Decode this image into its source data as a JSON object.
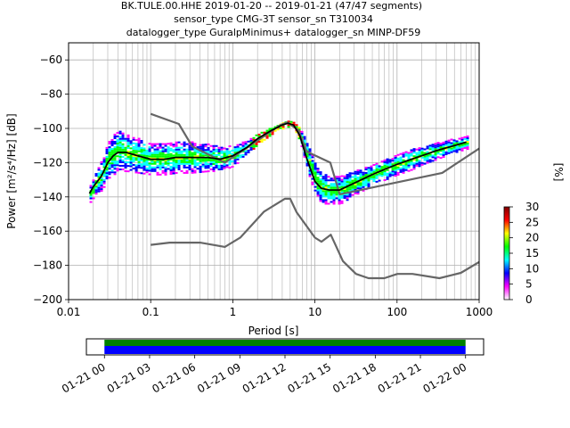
{
  "header": {
    "line1": "BK.TULE.00.HHE   2019-01-20 -- 2019-01-21  (47/47 segments)",
    "line2": "sensor_type CMG-3T sensor_sn T310034",
    "line3": "datalogger_type GuralpMinimus+ datalogger_sn MINP-DF59"
  },
  "chart_data": [
    {
      "type": "heatmap",
      "xlabel": "Period [s]",
      "ylabel": "Power [m²/s⁴/Hz] [dB]",
      "xscale": "log",
      "xlim": [
        0.01,
        1000
      ],
      "ylim": [
        -200,
        -50
      ],
      "grid": true,
      "x_ticks": [
        {
          "v": 0.01,
          "label": "0.01"
        },
        {
          "v": 0.1,
          "label": "0.1"
        },
        {
          "v": 1,
          "label": "1"
        },
        {
          "v": 10,
          "label": "10"
        },
        {
          "v": 100,
          "label": "100"
        },
        {
          "v": 1000,
          "label": "1000"
        }
      ],
      "y_ticks": [
        {
          "v": -60,
          "label": "−60"
        },
        {
          "v": -80,
          "label": "−80"
        },
        {
          "v": -100,
          "label": "−100"
        },
        {
          "v": -120,
          "label": "−120"
        },
        {
          "v": -140,
          "label": "−140"
        },
        {
          "v": -160,
          "label": "−160"
        },
        {
          "v": -180,
          "label": "−180"
        },
        {
          "v": -200,
          "label": "−200"
        }
      ],
      "colorbar": {
        "label": "[%]",
        "range": [
          0,
          30
        ],
        "ticks": [
          {
            "v": 0,
            "label": "0"
          },
          {
            "v": 5,
            "label": "5"
          },
          {
            "v": 10,
            "label": "10"
          },
          {
            "v": 15,
            "label": "15"
          },
          {
            "v": 20,
            "label": "20"
          },
          {
            "v": 25,
            "label": "25"
          },
          {
            "v": 30,
            "label": "30"
          }
        ],
        "colors": [
          "#ffffff",
          "#ff00ff",
          "#0000ff",
          "#00ffff",
          "#00ff00",
          "#ffff00",
          "#ff0000",
          "#800000"
        ]
      },
      "psd_band": {
        "period": [
          0.018,
          0.02,
          0.025,
          0.03,
          0.04,
          0.05,
          0.07,
          0.1,
          0.15,
          0.2,
          0.3,
          0.5,
          0.7,
          1,
          1.5,
          2,
          3,
          4,
          4.7,
          5.5,
          6.5,
          8,
          10,
          12,
          15,
          20,
          30,
          50,
          70,
          100,
          150,
          200,
          300,
          500,
          700
        ],
        "mean": [
          -138,
          -134,
          -127,
          -118,
          -113,
          -114,
          -116,
          -118,
          -118,
          -117,
          -117,
          -117,
          -118,
          -116,
          -111,
          -106,
          -101,
          -98,
          -97,
          -98,
          -104,
          -117,
          -130,
          -135,
          -136,
          -136,
          -132,
          -127,
          -124,
          -121,
          -118,
          -116,
          -113,
          -110,
          -108
        ],
        "spread": [
          5,
          6,
          9,
          11,
          12,
          11,
          10,
          9,
          9,
          9,
          9,
          8,
          7,
          6,
          4,
          3,
          2,
          2,
          2,
          2,
          4,
          8,
          9,
          9,
          8,
          8,
          7,
          6,
          6,
          6,
          6,
          5,
          5,
          4,
          4
        ]
      },
      "curves": [
        {
          "role": "nhnm",
          "color": "#666666",
          "x": [
            0.1,
            0.22,
            0.32,
            0.8,
            3.8,
            4.6,
            6.3,
            7.9,
            15.4,
            20,
            354.8,
            10000
          ],
          "y": [
            -91.5,
            -97.4,
            -110.5,
            -120,
            -98,
            -96.5,
            -101,
            -113.5,
            -120,
            -138.5,
            -126,
            -80.1
          ]
        },
        {
          "role": "nlnm",
          "color": "#666666",
          "x": [
            0.1,
            0.17,
            0.4,
            0.8,
            1.24,
            2.4,
            4.3,
            5,
            6,
            10,
            12,
            15.6,
            21.9,
            31.6,
            45,
            70,
            101,
            154,
            328,
            600,
            1000
          ],
          "y": [
            -168,
            -166.7,
            -166.7,
            -169.2,
            -163.7,
            -148.6,
            -141.1,
            -141.1,
            -149,
            -163.8,
            -166.2,
            -162.1,
            -177.5,
            -185,
            -187.5,
            -187.5,
            -185,
            -185,
            -187.5,
            -184.4,
            -178
          ]
        },
        {
          "role": "mode",
          "color": "#000000",
          "x": [
            0.018,
            0.02,
            0.025,
            0.03,
            0.035,
            0.04,
            0.05,
            0.07,
            0.1,
            0.15,
            0.2,
            0.3,
            0.5,
            0.7,
            1,
            1.5,
            2,
            3,
            4,
            4.7,
            5.5,
            6.5,
            8,
            10,
            12,
            15,
            20,
            30,
            50,
            70,
            100,
            150,
            200,
            300,
            500,
            700
          ],
          "y": [
            -138,
            -134,
            -128,
            -120,
            -116,
            -114,
            -114,
            -116,
            -118,
            -118,
            -117,
            -117,
            -117,
            -118,
            -116,
            -111,
            -106,
            -101,
            -98,
            -97,
            -98,
            -104,
            -118,
            -131,
            -135,
            -136,
            -136,
            -132,
            -127,
            -124,
            -121,
            -118,
            -116,
            -113,
            -110,
            -108
          ]
        }
      ]
    },
    {
      "type": "bar",
      "x_ticks": [
        "01-21 00",
        "01-21 03",
        "01-21 06",
        "01-21 09",
        "01-21 12",
        "01-21 15",
        "01-21 18",
        "01-21 21",
        "01-22 00"
      ],
      "coverage": [
        {
          "role": "data",
          "color": "#008000",
          "start_hours": 0,
          "end_hours": 24
        },
        {
          "role": "segments",
          "color": "#0000ff",
          "start_hours": 0,
          "end_hours": 24
        }
      ],
      "xlim_hours": [
        -1.2,
        25.2
      ]
    }
  ]
}
